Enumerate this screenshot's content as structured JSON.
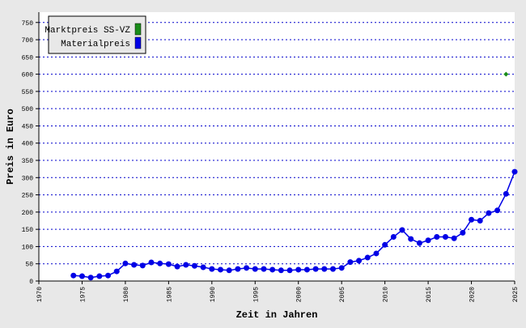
{
  "chart_data": {
    "type": "line",
    "xlabel": "Zeit in Jahren",
    "ylabel": "Preis in Euro",
    "xlim": [
      1970,
      2025
    ],
    "xticks": [
      1970,
      1975,
      1980,
      1985,
      1990,
      1995,
      2000,
      2005,
      2010,
      2015,
      2020,
      2025
    ],
    "ylim": [
      0,
      780
    ],
    "yticks": [
      0,
      50,
      100,
      150,
      200,
      250,
      300,
      350,
      400,
      450,
      500,
      550,
      600,
      650,
      700,
      750
    ],
    "grid": true,
    "legend": "upper left",
    "series": [
      {
        "name": "Marktpreis SS-VZ",
        "color": "#1a8c1a",
        "marker": "diamond",
        "x": [
          2024
        ],
        "values": [
          600
        ]
      },
      {
        "name": "Materialpreis",
        "color": "#0000e6",
        "marker": "circle",
        "x": [
          1974,
          1975,
          1976,
          1977,
          1978,
          1979,
          1980,
          1981,
          1982,
          1983,
          1984,
          1985,
          1986,
          1987,
          1988,
          1989,
          1990,
          1991,
          1992,
          1993,
          1994,
          1995,
          1996,
          1997,
          1998,
          1999,
          2000,
          2001,
          2002,
          2003,
          2004,
          2005,
          2006,
          2007,
          2008,
          2009,
          2010,
          2011,
          2012,
          2013,
          2014,
          2015,
          2016,
          2017,
          2018,
          2019,
          2020,
          2021,
          2022,
          2023,
          2024,
          2025
        ],
        "values": [
          16,
          14,
          10,
          14,
          16,
          28,
          51,
          47,
          45,
          54,
          51,
          49,
          42,
          47,
          44,
          40,
          35,
          33,
          31,
          35,
          38,
          35,
          35,
          33,
          31,
          31,
          33,
          33,
          35,
          35,
          35,
          38,
          55,
          59,
          68,
          80,
          105,
          128,
          148,
          122,
          110,
          118,
          128,
          128,
          124,
          140,
          178,
          175,
          197,
          205,
          253,
          317
        ]
      }
    ]
  }
}
